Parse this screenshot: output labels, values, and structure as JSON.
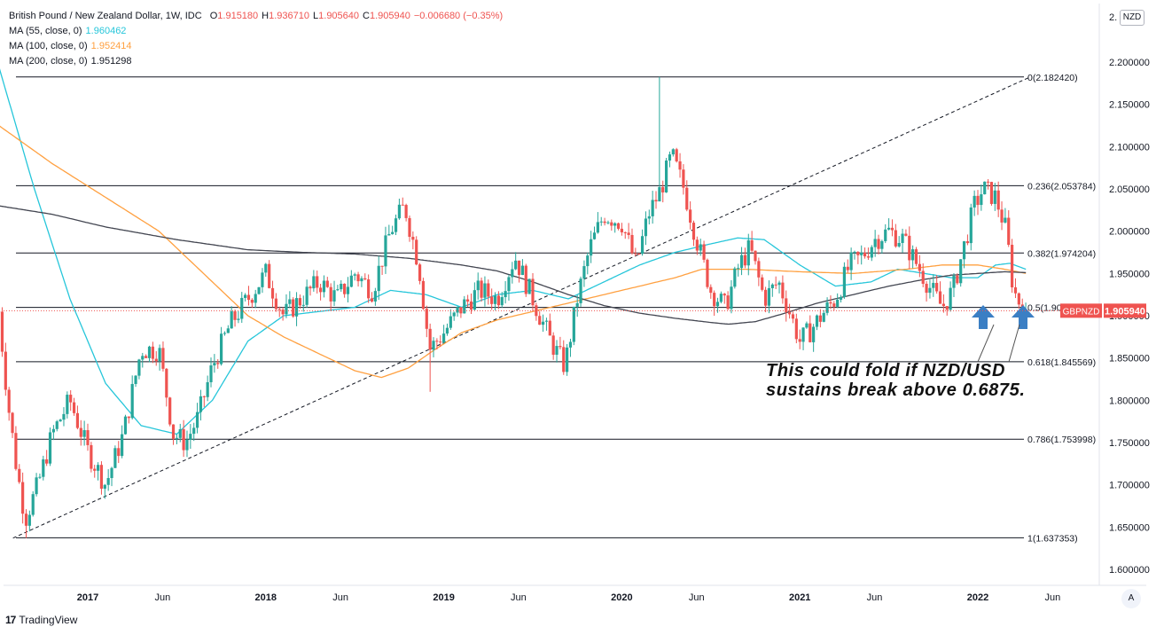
{
  "header": {
    "symbol_title": "British Pound / New Zealand Dollar, 1W, IDC",
    "ohlc": [
      {
        "k": "O",
        "v": "1.915180"
      },
      {
        "k": "H",
        "v": "1.936710"
      },
      {
        "k": "L",
        "v": "1.905640"
      },
      {
        "k": "C",
        "v": "1.905940"
      },
      {
        "k": "",
        "v": "−0.006680 (−0.35%)"
      }
    ],
    "ohlc_color": "#ef5350",
    "indicators": [
      {
        "label": "MA (55, close, 0)",
        "value": "1.960462",
        "color": "#26c6da"
      },
      {
        "label": "MA (100, close, 0)",
        "value": "1.952414",
        "color": "#ffa040"
      },
      {
        "label": "MA (200, close, 0)",
        "value": "1.951298",
        "color": "#434651"
      }
    ]
  },
  "currency_button": "NZD",
  "auto_button": "A",
  "branding": {
    "logo_text": "TradingView"
  },
  "annotation": {
    "line1": "This could fold if NZD/USD",
    "line2": "sustains break above 0.6875."
  },
  "chart_data": {
    "type": "candlestick",
    "symbol": "GBPNZD",
    "timeframe": "1W",
    "x_ticks": [
      {
        "label": "2017",
        "t": 2017.0
      },
      {
        "label": "Jun",
        "t": 2017.42
      },
      {
        "label": "2018",
        "t": 2018.0
      },
      {
        "label": "Jun",
        "t": 2018.42
      },
      {
        "label": "2019",
        "t": 2019.0
      },
      {
        "label": "Jun",
        "t": 2019.42
      },
      {
        "label": "2020",
        "t": 2020.0
      },
      {
        "label": "Jun",
        "t": 2020.42
      },
      {
        "label": "2021",
        "t": 2021.0
      },
      {
        "label": "Jun",
        "t": 2021.42
      },
      {
        "label": "2022",
        "t": 2022.0
      },
      {
        "label": "Jun",
        "t": 2022.42
      }
    ],
    "xlim": [
      2016.5,
      2022.95
    ],
    "ylim": [
      1.58,
      2.237
    ],
    "y_ticks": [
      "2.200000",
      "2.150000",
      "2.100000",
      "2.050000",
      "2.000000",
      "1.950000",
      "1.900000",
      "1.850000",
      "1.800000",
      "1.750000",
      "1.700000",
      "1.650000",
      "1.600000"
    ],
    "y_tick_partial_top": "2.",
    "last_price": {
      "label": "GBPNZD",
      "value": "1.905940",
      "price": 1.90594,
      "color": "#ef5350"
    },
    "fibonacci": [
      {
        "label": "0(2.182420)",
        "price": 2.18242
      },
      {
        "label": "0.236(2.053784)",
        "price": 2.053784
      },
      {
        "label": "0.382(1.974204)",
        "price": 1.974204
      },
      {
        "label": "0.5(1.909886)",
        "price": 1.909886
      },
      {
        "label": "0.618(1.845569)",
        "price": 1.845569
      },
      {
        "label": "0.786(1.753998)",
        "price": 1.753998
      },
      {
        "label": "1(1.637353)",
        "price": 1.637353
      }
    ],
    "trendline": {
      "style": "dashed",
      "from": {
        "t": 2016.58,
        "price": 1.637
      },
      "to": {
        "t": 2022.29,
        "price": 2.182
      }
    },
    "candle_colors": {
      "up": "#26a69a",
      "down": "#ef5350"
    },
    "price_anchors": [
      [
        2016.5,
        1.905
      ],
      [
        2016.55,
        1.8
      ],
      [
        2016.6,
        1.72
      ],
      [
        2016.65,
        1.66
      ],
      [
        2016.72,
        1.7
      ],
      [
        2016.8,
        1.76
      ],
      [
        2016.9,
        1.8
      ],
      [
        2017.0,
        1.74
      ],
      [
        2017.1,
        1.7
      ],
      [
        2017.2,
        1.76
      ],
      [
        2017.3,
        1.86
      ],
      [
        2017.4,
        1.86
      ],
      [
        2017.48,
        1.76
      ],
      [
        2017.55,
        1.75
      ],
      [
        2017.62,
        1.78
      ],
      [
        2017.7,
        1.84
      ],
      [
        2017.8,
        1.89
      ],
      [
        2017.9,
        1.92
      ],
      [
        2018.0,
        1.95
      ],
      [
        2018.1,
        1.9
      ],
      [
        2018.2,
        1.92
      ],
      [
        2018.3,
        1.94
      ],
      [
        2018.4,
        1.92
      ],
      [
        2018.5,
        1.95
      ],
      [
        2018.6,
        1.93
      ],
      [
        2018.7,
        2.0
      ],
      [
        2018.78,
        2.03
      ],
      [
        2018.86,
        1.96
      ],
      [
        2018.92,
        1.86
      ],
      [
        2019.0,
        1.88
      ],
      [
        2019.1,
        1.91
      ],
      [
        2019.2,
        1.93
      ],
      [
        2019.3,
        1.92
      ],
      [
        2019.4,
        1.97
      ],
      [
        2019.5,
        1.92
      ],
      [
        2019.6,
        1.87
      ],
      [
        2019.68,
        1.84
      ],
      [
        2019.75,
        1.92
      ],
      [
        2019.82,
        1.98
      ],
      [
        2019.9,
        2.02
      ],
      [
        2020.0,
        2.01
      ],
      [
        2020.08,
        1.96
      ],
      [
        2020.15,
        2.02
      ],
      [
        2020.22,
        2.05
      ],
      [
        2020.28,
        2.09
      ],
      [
        2020.35,
        2.05
      ],
      [
        2020.42,
        1.99
      ],
      [
        2020.5,
        1.93
      ],
      [
        2020.58,
        1.91
      ],
      [
        2020.66,
        1.96
      ],
      [
        2020.72,
        1.98
      ],
      [
        2020.8,
        1.92
      ],
      [
        2020.88,
        1.94
      ],
      [
        2020.95,
        1.9
      ],
      [
        2021.0,
        1.87
      ],
      [
        2021.05,
        1.88
      ],
      [
        2021.12,
        1.9
      ],
      [
        2021.2,
        1.92
      ],
      [
        2021.28,
        1.96
      ],
      [
        2021.35,
        1.97
      ],
      [
        2021.42,
        1.99
      ],
      [
        2021.5,
        2.0
      ],
      [
        2021.58,
        1.99
      ],
      [
        2021.66,
        1.96
      ],
      [
        2021.74,
        1.93
      ],
      [
        2021.8,
        1.91
      ],
      [
        2021.86,
        1.93
      ],
      [
        2021.92,
        1.98
      ],
      [
        2021.98,
        2.03
      ],
      [
        2022.03,
        2.05
      ],
      [
        2022.1,
        2.04
      ],
      [
        2022.16,
        2.0
      ],
      [
        2022.2,
        1.93
      ],
      [
        2022.25,
        1.909
      ],
      [
        2022.27,
        1.906
      ]
    ],
    "moving_averages": [
      {
        "name": "MA (55, close, 0)",
        "color": "#26c6da",
        "points": [
          [
            2016.5,
            2.195
          ],
          [
            2016.7,
            2.05
          ],
          [
            2016.9,
            1.92
          ],
          [
            2017.1,
            1.82
          ],
          [
            2017.3,
            1.77
          ],
          [
            2017.5,
            1.76
          ],
          [
            2017.7,
            1.8
          ],
          [
            2017.9,
            1.87
          ],
          [
            2018.1,
            1.9
          ],
          [
            2018.3,
            1.905
          ],
          [
            2018.5,
            1.91
          ],
          [
            2018.7,
            1.93
          ],
          [
            2018.9,
            1.925
          ],
          [
            2019.1,
            1.91
          ],
          [
            2019.3,
            1.925
          ],
          [
            2019.5,
            1.93
          ],
          [
            2019.7,
            1.92
          ],
          [
            2019.9,
            1.94
          ],
          [
            2020.1,
            1.96
          ],
          [
            2020.3,
            1.975
          ],
          [
            2020.5,
            1.985
          ],
          [
            2020.65,
            1.992
          ],
          [
            2020.8,
            1.99
          ],
          [
            2021.0,
            1.96
          ],
          [
            2021.2,
            1.935
          ],
          [
            2021.4,
            1.94
          ],
          [
            2021.55,
            1.955
          ],
          [
            2021.7,
            1.95
          ],
          [
            2021.85,
            1.945
          ],
          [
            2022.0,
            1.945
          ],
          [
            2022.1,
            1.96
          ],
          [
            2022.18,
            1.962
          ],
          [
            2022.27,
            1.955
          ]
        ]
      },
      {
        "name": "MA (100, close, 0)",
        "color": "#ffa040",
        "points": [
          [
            2016.5,
            2.125
          ],
          [
            2016.8,
            2.08
          ],
          [
            2017.1,
            2.04
          ],
          [
            2017.4,
            2.0
          ],
          [
            2017.7,
            1.94
          ],
          [
            2017.9,
            1.9
          ],
          [
            2018.1,
            1.875
          ],
          [
            2018.3,
            1.855
          ],
          [
            2018.5,
            1.835
          ],
          [
            2018.65,
            1.827
          ],
          [
            2018.8,
            1.838
          ],
          [
            2018.95,
            1.86
          ],
          [
            2019.1,
            1.88
          ],
          [
            2019.3,
            1.895
          ],
          [
            2019.5,
            1.905
          ],
          [
            2019.7,
            1.915
          ],
          [
            2019.9,
            1.925
          ],
          [
            2020.1,
            1.935
          ],
          [
            2020.3,
            1.945
          ],
          [
            2020.45,
            1.955
          ],
          [
            2020.7,
            1.955
          ],
          [
            2021.0,
            1.952
          ],
          [
            2021.3,
            1.95
          ],
          [
            2021.6,
            1.955
          ],
          [
            2021.8,
            1.96
          ],
          [
            2022.0,
            1.96
          ],
          [
            2022.15,
            1.955
          ],
          [
            2022.27,
            1.95
          ]
        ]
      },
      {
        "name": "MA (200, close, 0)",
        "color": "#434651",
        "points": [
          [
            2016.5,
            2.03
          ],
          [
            2016.8,
            2.02
          ],
          [
            2017.1,
            2.005
          ],
          [
            2017.5,
            1.99
          ],
          [
            2017.9,
            1.978
          ],
          [
            2018.2,
            1.975
          ],
          [
            2018.5,
            1.973
          ],
          [
            2018.8,
            1.968
          ],
          [
            2019.1,
            1.96
          ],
          [
            2019.3,
            1.953
          ],
          [
            2019.5,
            1.94
          ],
          [
            2019.7,
            1.925
          ],
          [
            2019.9,
            1.912
          ],
          [
            2020.1,
            1.903
          ],
          [
            2020.3,
            1.897
          ],
          [
            2020.5,
            1.892
          ],
          [
            2020.6,
            1.89
          ],
          [
            2020.75,
            1.893
          ],
          [
            2020.9,
            1.902
          ],
          [
            2021.1,
            1.915
          ],
          [
            2021.3,
            1.925
          ],
          [
            2021.5,
            1.935
          ],
          [
            2021.7,
            1.943
          ],
          [
            2021.85,
            1.948
          ],
          [
            2022.0,
            1.95
          ],
          [
            2022.15,
            1.952
          ],
          [
            2022.27,
            1.951
          ]
        ]
      }
    ],
    "spikes": [
      {
        "t": 2016.65,
        "low": 1.637
      },
      {
        "t": 2020.22,
        "high": 2.18242
      },
      {
        "t": 2018.92,
        "low": 1.81
      }
    ]
  }
}
